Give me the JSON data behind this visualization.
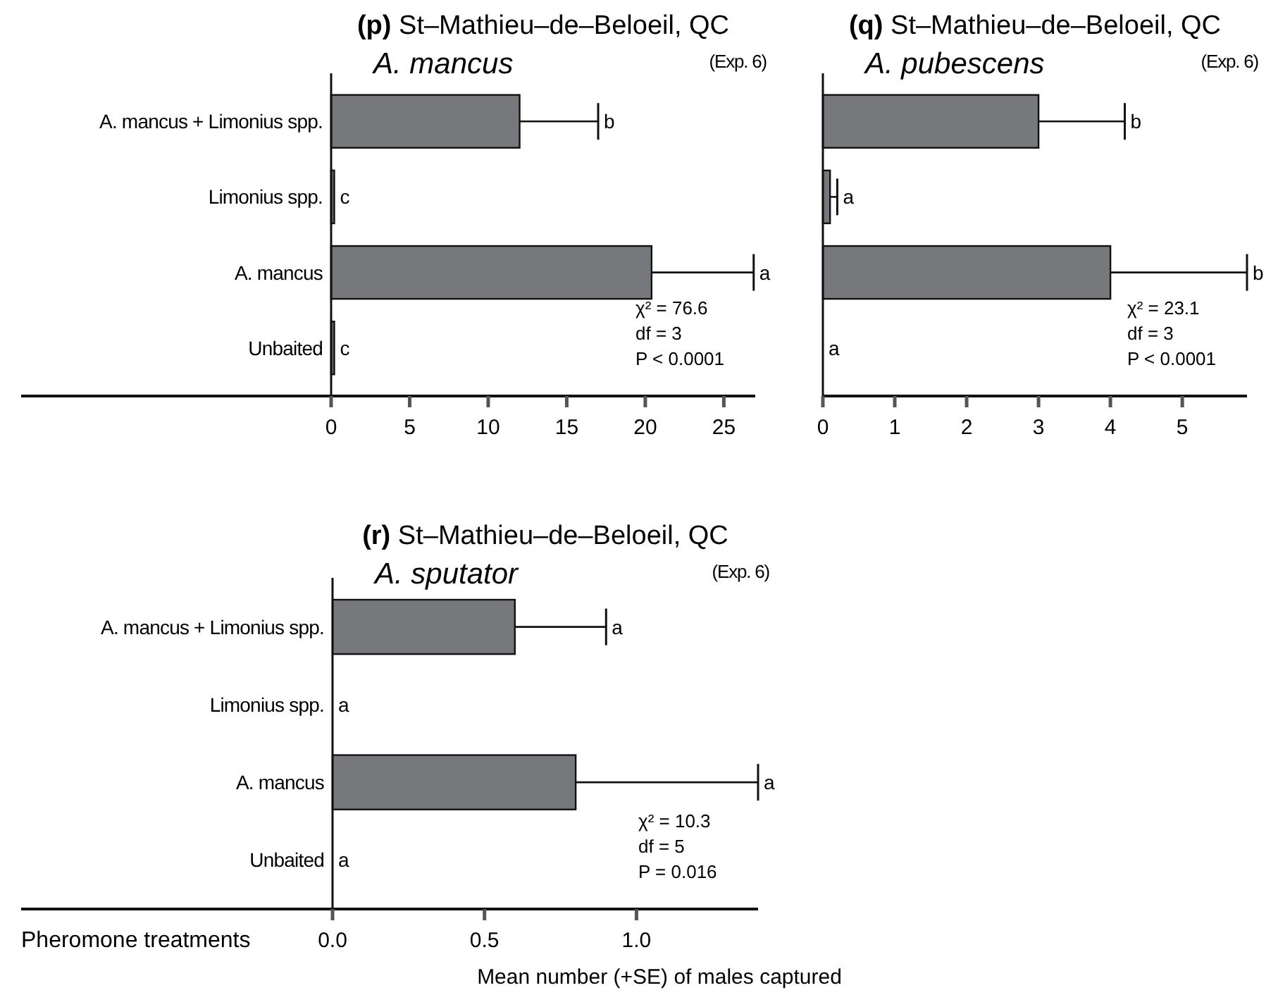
{
  "chart_data": [
    {
      "type": "bar",
      "orientation": "horizontal",
      "title": "(p) St–Mathieu–de–Beloeil, QC",
      "subtitle": "A. mancus",
      "categories": [
        "A. mancus + Limonius spp.",
        "Limonius spp.",
        "A. mancus",
        "Unbaited"
      ],
      "values": [
        12.0,
        0.2,
        20.4,
        0.2
      ],
      "errors": [
        [
          12.0,
          17.0
        ],
        null,
        [
          20.4,
          26.9
        ],
        null
      ],
      "color": "#77787b",
      "xlim": [
        0,
        27
      ],
      "xticks": [
        0,
        5,
        10,
        15,
        20,
        25
      ],
      "annotations": [
        "(Exp. 6)",
        "χ² = 76.6",
        "df = 3",
        "P < 0.0001",
        {
          "text": "b",
          "x": 17.0,
          "y": "A. mancus + Limonius spp."
        },
        {
          "text": "c",
          "x": 0.2,
          "y": "Limonius spp."
        },
        {
          "text": "a",
          "x": 26.9,
          "y": "A. mancus"
        },
        {
          "text": "c",
          "x": 0.2,
          "y": "Unbaited"
        }
      ]
    },
    {
      "type": "bar",
      "orientation": "horizontal",
      "title": "(q) St–Mathieu–de–Beloeil, QC",
      "subtitle": "A. pubescens",
      "categories": [
        "A. mancus + Limonius spp.",
        "Limonius spp.",
        "A. mancus",
        "Unbaited"
      ],
      "values": [
        3.0,
        0.1,
        4.0,
        0
      ],
      "errors": [
        [
          3.0,
          4.2
        ],
        [
          0.1,
          0.2
        ],
        [
          4.0,
          5.9
        ],
        null
      ],
      "color": "#77787b",
      "xlim": [
        0,
        5.9
      ],
      "xticks": [
        0,
        1,
        2,
        3,
        4,
        5
      ],
      "tick_labels": "x",
      "annotations": [
        "(Exp. 6)",
        "χ² = 23.1",
        "df = 3",
        "P < 0.0001",
        {
          "text": "b",
          "x": 4.2,
          "y": "A. mancus + Limonius spp."
        },
        {
          "text": "a",
          "x": 0.2,
          "y": "Limonius spp."
        },
        {
          "text": "b",
          "x": 5.9,
          "y": "A. mancus"
        },
        {
          "text": "a",
          "x": 0,
          "y": "Unbaited"
        }
      ]
    },
    {
      "type": "bar",
      "orientation": "horizontal",
      "title": "(r) St–Mathieu–de–Beloeil, QC",
      "subtitle": "A. sputator",
      "ylabel": "Pheromone treatments",
      "xlabel": "Mean number (+SE) of males captured",
      "categories": [
        "A. mancus + Limonius spp.",
        "Limonius spp.",
        "A. mancus",
        "Unbaited"
      ],
      "values": [
        0.6,
        0,
        0.8,
        0
      ],
      "errors": [
        [
          0.6,
          0.9
        ],
        null,
        [
          0.8,
          1.4
        ],
        null
      ],
      "color": "#77787b",
      "xlim": [
        0,
        1.4
      ],
      "xticks": [
        {
          "value": 0,
          "label": "0.0"
        },
        0.5,
        {
          "value": 1,
          "label": "1.0"
        }
      ],
      "annotations": [
        "(Exp. 6)",
        "χ² = 10.3",
        "df = 5",
        "P = 0.016",
        {
          "text": "a",
          "x": 0.9,
          "y": "A. mancus + Limonius spp."
        },
        {
          "text": "a",
          "x": 0,
          "y": "Limonius spp."
        },
        {
          "text": "a",
          "x": 1.4,
          "y": "A. mancus"
        },
        {
          "text": "a",
          "x": 0,
          "y": "Unbaited"
        }
      ]
    }
  ]
}
